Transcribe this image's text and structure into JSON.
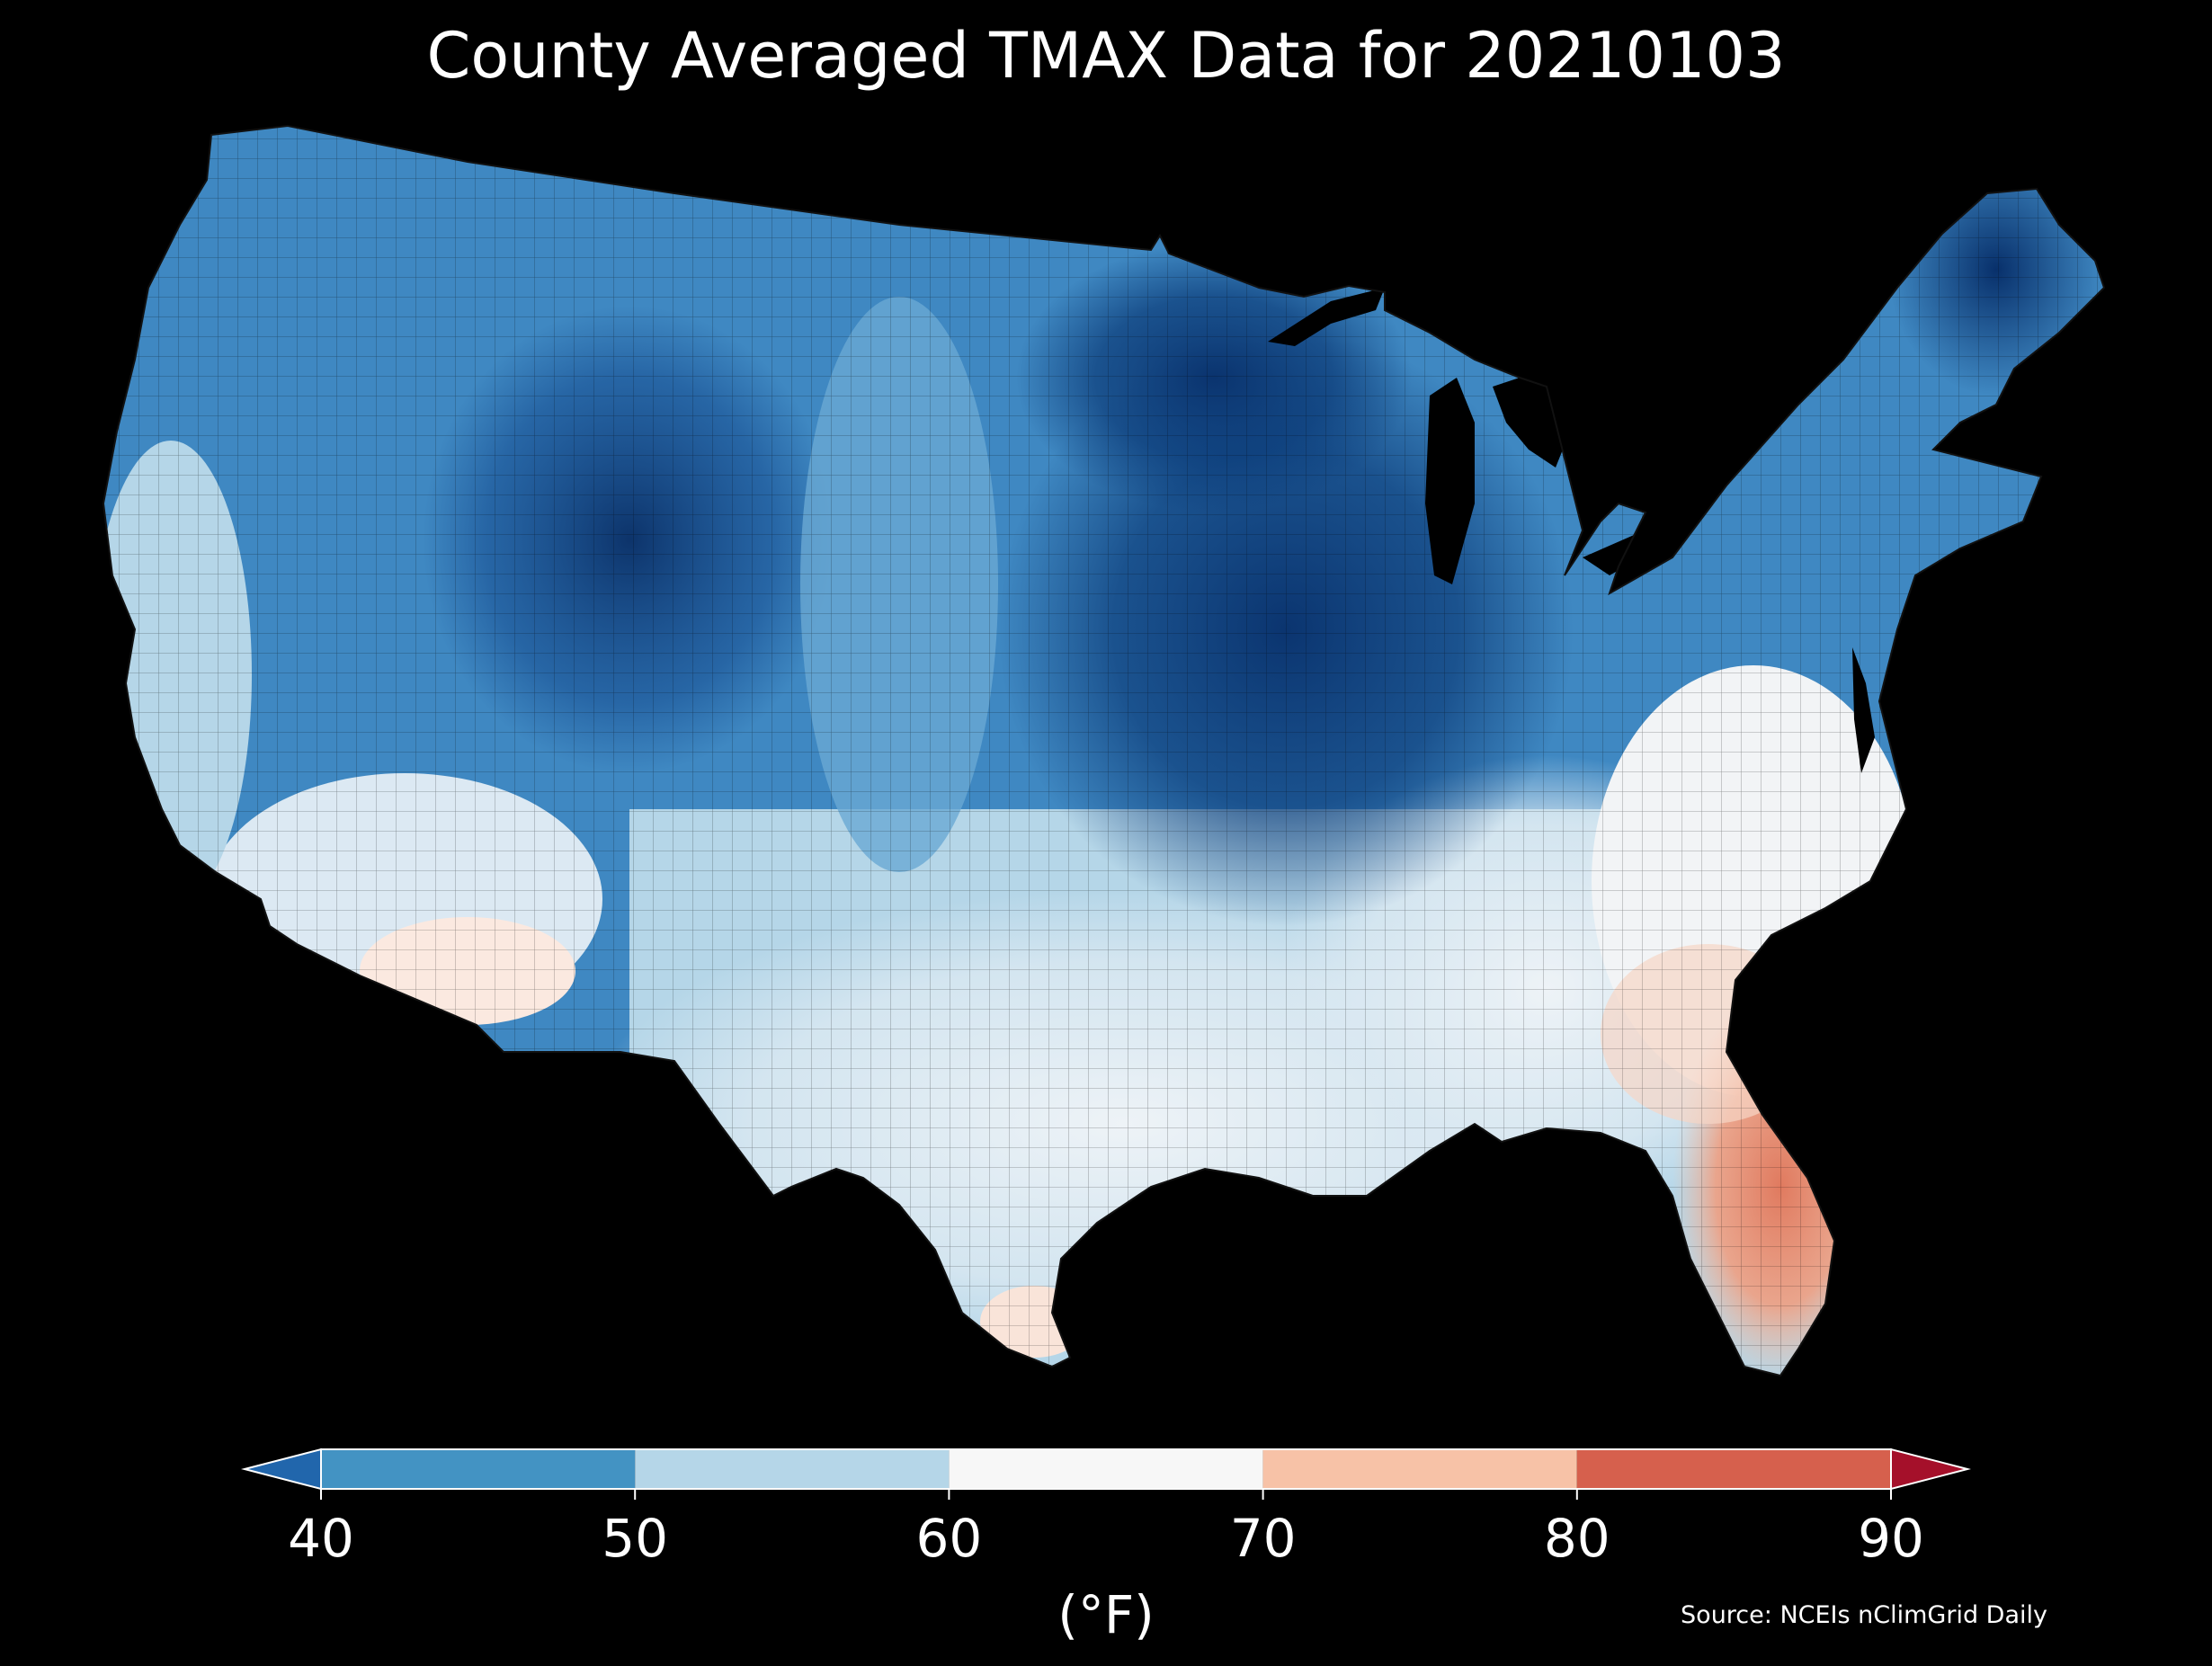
{
  "title": "County Averaged TMAX Data for 20210103",
  "colorbar": {
    "unit_label": "(°F)",
    "ticks": [
      "40",
      "50",
      "60",
      "70",
      "80",
      "90"
    ],
    "bins": [
      {
        "from": 40,
        "to": 50,
        "color": "#4393c3"
      },
      {
        "from": 50,
        "to": 60,
        "color": "#b5d6e8"
      },
      {
        "from": 60,
        "to": 70,
        "color": "#f7f7f7"
      },
      {
        "from": 70,
        "to": 80,
        "color": "#f7c2a7"
      },
      {
        "from": 80,
        "to": 90,
        "color": "#d6604d"
      }
    ],
    "under_color": "#2166ac",
    "over_color": "#a5102a"
  },
  "source": "Source: NCEIs nClimGrid Daily",
  "map_colors": {
    "very_cold": "#08306b",
    "cold": "#1c5ea6",
    "cool": "#4393c3",
    "mild": "#b5d6e8",
    "neutral": "#f4f6f8",
    "warm": "#f7c2a7",
    "hot": "#e07a5f"
  }
}
